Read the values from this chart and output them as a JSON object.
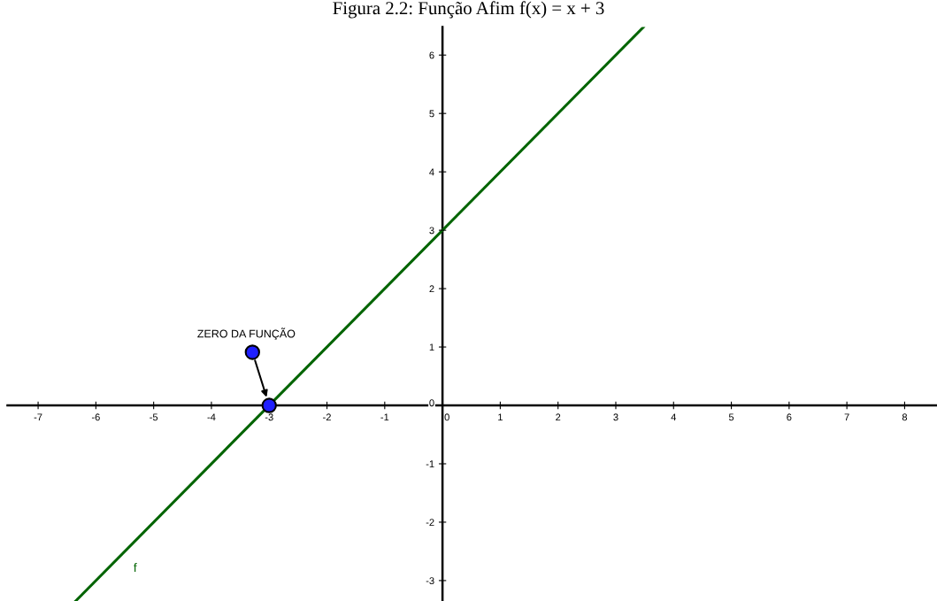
{
  "chart_data": {
    "type": "line",
    "title": "Figura 2.2: Função Afim f(x) = x + 3",
    "series": [
      {
        "name": "f",
        "color": "#006400",
        "x": [
          -6.35,
          3.48
        ],
        "values": [
          -3.35,
          6.48
        ]
      },
      {
        "type": "scatter",
        "color": "#2020ff",
        "marker": "circle",
        "x": [
          -3.29,
          -3
        ],
        "values": [
          0.91,
          0
        ]
      }
    ],
    "annotations": [
      {
        "text": "ZERO DA FUNÇÃO",
        "x": -3.29,
        "y": 0.91
      }
    ],
    "xlim": [
      -7.53,
      8.56
    ],
    "ylim": [
      -3.35,
      6.48
    ],
    "xticks": [
      -7,
      -6,
      -5,
      -4,
      -3,
      -2,
      -1,
      0,
      1,
      2,
      3,
      4,
      5,
      6,
      7,
      8
    ],
    "yticks": [
      -3,
      -2,
      -1,
      0,
      1,
      2,
      3,
      4,
      5,
      6
    ],
    "grid": false
  }
}
